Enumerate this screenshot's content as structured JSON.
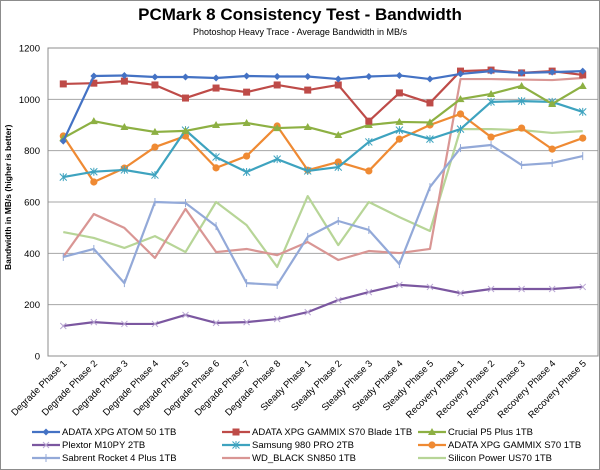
{
  "chart_data": {
    "type": "line",
    "title": "PCMark 8 Consistency Test - Bandwidth",
    "subtitle": "Photoshop Heavy Trace - Average Bandwidth in MB/s",
    "xlabel": "",
    "ylabel": "Bandwidth in MB/s (higher is better)",
    "ylim": [
      0,
      1200
    ],
    "yticks": [
      0,
      200,
      400,
      600,
      800,
      1000,
      1200
    ],
    "grid": true,
    "legend_position": "bottom",
    "categories": [
      "Degrade Phase 1",
      "Degrade Phase 2",
      "Degrade Phase 3",
      "Degrade Phase 4",
      "Degrade Phase 5",
      "Degrade Phase 6",
      "Degrade Phase 7",
      "Degrade Phase 8",
      "Steady Phase 1",
      "Steady Phase 2",
      "Steady Phase 3",
      "Steady Phase 4",
      "Steady Phase 5",
      "Recovery Phase 1",
      "Recovery Phase 2",
      "Recovery Phase 3",
      "Recovery Phase 4",
      "Recovery Phase 5"
    ],
    "series": [
      {
        "name": "ADATA XPG ATOM 50 1TB",
        "color": "#4472c4",
        "marker": "diamond",
        "values": [
          837,
          1091,
          1093,
          1087,
          1087,
          1083,
          1091,
          1089,
          1089,
          1079,
          1089,
          1093,
          1079,
          1099,
          1110,
          1103,
          1106,
          1110
        ]
      },
      {
        "name": "ADATA XPG GAMMIX S70 Blade 1TB",
        "color": "#be4b48",
        "marker": "square",
        "values": [
          1060,
          1063,
          1071,
          1056,
          1005,
          1044,
          1028,
          1056,
          1036,
          1056,
          915,
          1025,
          986,
          1110,
          1114,
          1103,
          1110,
          1095
        ]
      },
      {
        "name": "Crucial P5 Plus 1TB",
        "color": "#8db043",
        "marker": "triangle",
        "values": [
          849,
          915,
          892,
          873,
          877,
          900,
          908,
          888,
          892,
          861,
          900,
          912,
          910,
          1001,
          1021,
          1052,
          982,
          1052
        ]
      },
      {
        "name": "Plextor M10PY 2TB",
        "color": "#7b57a0",
        "marker": "x",
        "values": [
          117,
          132,
          125,
          125,
          160,
          129,
          132,
          144,
          171,
          218,
          249,
          277,
          269,
          245,
          261,
          261,
          261,
          269
        ]
      },
      {
        "name": "Samsung 980 PRO 2TB",
        "color": "#3ea3bf",
        "marker": "star",
        "values": [
          697,
          718,
          725,
          705,
          880,
          775,
          717,
          767,
          721,
          736,
          834,
          880,
          845,
          884,
          990,
          993,
          990,
          951
        ]
      },
      {
        "name": "ADATA XPG GAMMIX S70 1TB",
        "color": "#ef8a33",
        "marker": "circle",
        "values": [
          857,
          678,
          732,
          814,
          857,
          733,
          779,
          896,
          724,
          756,
          721,
          845,
          900,
          943,
          853,
          888,
          806,
          849
        ]
      },
      {
        "name": "Sabrent Rocket 4 Plus 1TB",
        "color": "#93a9d8",
        "marker": "plus",
        "values": [
          386,
          417,
          284,
          600,
          596,
          506,
          284,
          277,
          464,
          526,
          491,
          358,
          658,
          810,
          822,
          744,
          752,
          779
        ]
      },
      {
        "name": "WD_BLACK SN850 1TB",
        "color": "#d99694",
        "marker": "none",
        "values": [
          386,
          553,
          499,
          382,
          573,
          405,
          417,
          393,
          444,
          374,
          409,
          401,
          417,
          1079,
          1079,
          1077,
          1075,
          1083
        ]
      },
      {
        "name": "Silicon Power US70 1TB",
        "color": "#b7d597",
        "marker": "none",
        "values": [
          483,
          460,
          421,
          467,
          405,
          600,
          510,
          347,
          623,
          432,
          600,
          541,
          487,
          884,
          884,
          880,
          869,
          876
        ]
      }
    ]
  }
}
